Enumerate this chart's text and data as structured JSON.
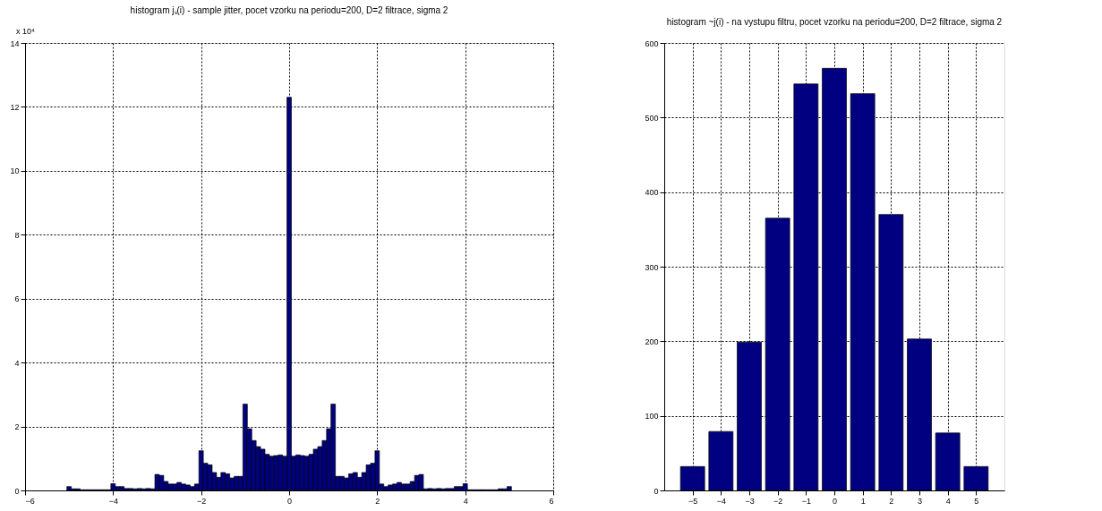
{
  "chart_data": [
    {
      "type": "histogram",
      "title": "histogram jₛ(i) - sample jitter, pocet vzorku na periodu=200, D=2 filtrace, sigma 2",
      "annotations": [
        "x 10⁴"
      ],
      "bins": [
        -5.05,
        -4.95,
        -4.85,
        -4.75,
        -4.65,
        -4.55,
        -4.45,
        -4.35,
        -4.25,
        -4.15,
        -4.05,
        -3.95,
        -3.85,
        -3.75,
        -3.65,
        -3.55,
        -3.45,
        -3.35,
        -3.25,
        -3.15,
        -3.05,
        -2.95,
        -2.85,
        -2.75,
        -2.65,
        -2.55,
        -2.45,
        -2.35,
        -2.25,
        -2.15,
        -2.05,
        -1.95,
        -1.85,
        -1.75,
        -1.65,
        -1.55,
        -1.45,
        -1.35,
        -1.25,
        -1.15,
        -1.05,
        -0.95,
        -0.85,
        -0.75,
        -0.65,
        -0.55,
        -0.45,
        -0.35,
        -0.25,
        -0.15,
        -0.05,
        0.05,
        0.15,
        0.25,
        0.35,
        0.45,
        0.55,
        0.65,
        0.75,
        0.85,
        0.95,
        1.05,
        1.15,
        1.25,
        1.35,
        1.45,
        1.55,
        1.65,
        1.75,
        1.85,
        1.95,
        2.05,
        2.15,
        2.25,
        2.35,
        2.45,
        2.55,
        2.65,
        2.75,
        2.85,
        2.95,
        3.05,
        3.15,
        3.25,
        3.35,
        3.45,
        3.55,
        3.65,
        3.75,
        3.85,
        3.95,
        4.05,
        4.15,
        4.25,
        4.35,
        4.45,
        4.55,
        4.65,
        4.75,
        4.85,
        4.95,
        5.05
      ],
      "values": [
        0.12,
        0.05,
        0.05,
        0.02,
        0.02,
        0.02,
        0.02,
        0.02,
        0.02,
        0.02,
        0.21,
        0.12,
        0.12,
        0.06,
        0.06,
        0.05,
        0.06,
        0.05,
        0.06,
        0.05,
        0.5,
        0.47,
        0.28,
        0.2,
        0.2,
        0.25,
        0.2,
        0.17,
        0.12,
        0.2,
        1.24,
        0.85,
        0.8,
        0.56,
        0.41,
        0.56,
        0.52,
        0.39,
        0.44,
        0.44,
        2.7,
        1.93,
        1.56,
        1.37,
        1.29,
        1.13,
        1.07,
        1.09,
        1.11,
        1.07,
        12.3,
        1.07,
        1.11,
        1.09,
        1.07,
        1.13,
        1.29,
        1.37,
        1.56,
        1.93,
        2.7,
        0.44,
        0.44,
        0.39,
        0.52,
        0.56,
        0.41,
        0.56,
        0.8,
        0.85,
        1.24,
        0.2,
        0.12,
        0.17,
        0.2,
        0.25,
        0.2,
        0.2,
        0.28,
        0.47,
        0.5,
        0.05,
        0.06,
        0.05,
        0.06,
        0.05,
        0.06,
        0.06,
        0.12,
        0.12,
        0.21,
        0.02,
        0.02,
        0.02,
        0.02,
        0.02,
        0.02,
        0.02,
        0.05,
        0.05,
        0.12
      ],
      "color": "#000080",
      "xlim": [
        -6,
        6
      ],
      "xticks": [
        -6,
        -4,
        -2,
        0,
        2,
        4,
        6
      ],
      "ylim": [
        0,
        14
      ],
      "yticks": [
        0,
        2,
        4,
        6,
        8,
        10,
        12,
        14
      ],
      "grid": true
    },
    {
      "type": "bar",
      "title": "histogram ~j(i) - na vystupu filtru, pocet vzorku na periodu=200, D=2 filtrace, sigma 2",
      "x": [
        -5,
        -4,
        -3,
        -2,
        -1,
        0,
        1,
        2,
        3,
        4,
        5
      ],
      "values": [
        32,
        79,
        199,
        365,
        545,
        566,
        532,
        370,
        203,
        77,
        32
      ],
      "color": "#000080",
      "xlim": [
        -6,
        6
      ],
      "xticks": [
        -5,
        -4,
        -3,
        -2,
        -1,
        0,
        1,
        2,
        3,
        4,
        5
      ],
      "ylim": [
        0,
        600
      ],
      "yticks": [
        0,
        100,
        200,
        300,
        400,
        500,
        600
      ],
      "grid": true
    }
  ]
}
